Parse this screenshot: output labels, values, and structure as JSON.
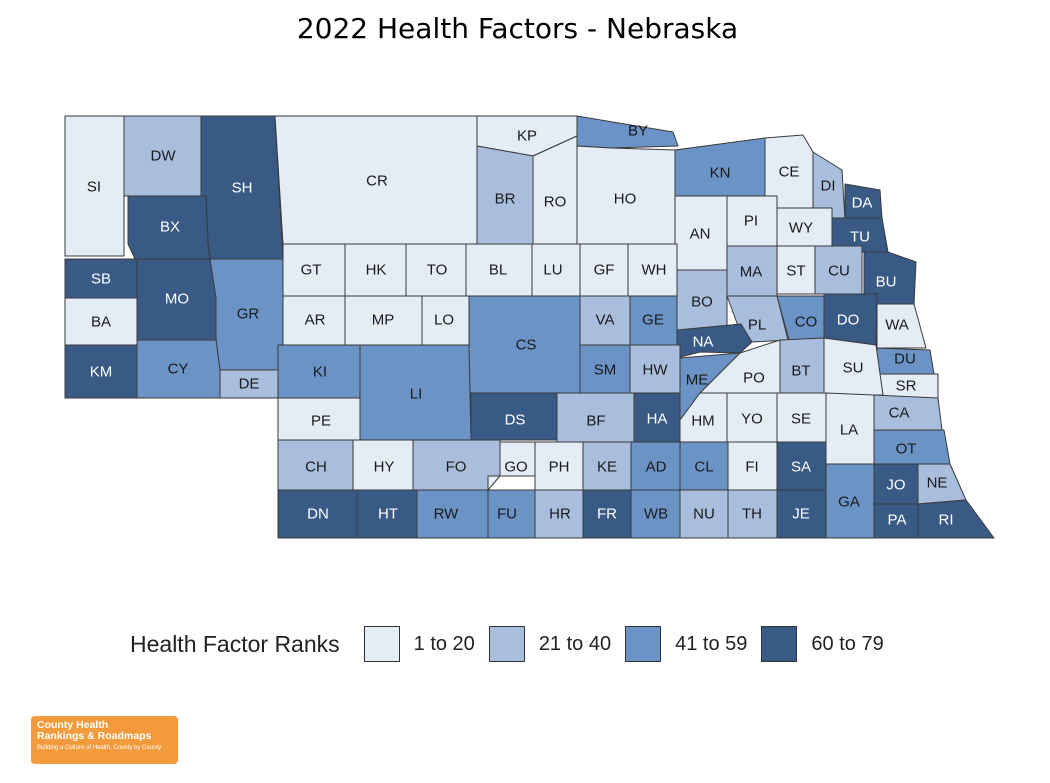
{
  "title": "2022 Health Factors - Nebraska",
  "legend": {
    "title": "Health Factor Ranks",
    "items": [
      {
        "label": "1 to 20",
        "color": "#e4ecf5"
      },
      {
        "label": "21 to 40",
        "color": "#a8bedc"
      },
      {
        "label": "41 to 59",
        "color": "#6c93c6"
      },
      {
        "label": "60 to 79",
        "color": "#3a5a86"
      }
    ]
  },
  "logo": {
    "line1": "County Health",
    "line2": "Rankings & Roadmaps",
    "line3": "Building a Culture of Health, County by County"
  },
  "counties": [
    {
      "abbr": "SI",
      "tier": 0
    },
    {
      "abbr": "DW",
      "tier": 1
    },
    {
      "abbr": "SH",
      "tier": 3
    },
    {
      "abbr": "BX",
      "tier": 3
    },
    {
      "abbr": "CR",
      "tier": 0
    },
    {
      "abbr": "KP",
      "tier": 0
    },
    {
      "abbr": "BY",
      "tier": 2
    },
    {
      "abbr": "BR",
      "tier": 1
    },
    {
      "abbr": "RO",
      "tier": 0
    },
    {
      "abbr": "HO",
      "tier": 0
    },
    {
      "abbr": "KN",
      "tier": 2
    },
    {
      "abbr": "CE",
      "tier": 0
    },
    {
      "abbr": "DI",
      "tier": 1
    },
    {
      "abbr": "DA",
      "tier": 3
    },
    {
      "abbr": "TU",
      "tier": 3
    },
    {
      "abbr": "BU",
      "tier": 3
    },
    {
      "abbr": "AN",
      "tier": 0
    },
    {
      "abbr": "PI",
      "tier": 0
    },
    {
      "abbr": "WY",
      "tier": 0
    },
    {
      "abbr": "SB",
      "tier": 3
    },
    {
      "abbr": "MO",
      "tier": 3
    },
    {
      "abbr": "BA",
      "tier": 0
    },
    {
      "abbr": "KM",
      "tier": 3
    },
    {
      "abbr": "GR",
      "tier": 2
    },
    {
      "abbr": "CY",
      "tier": 2
    },
    {
      "abbr": "DE",
      "tier": 1
    },
    {
      "abbr": "GT",
      "tier": 0
    },
    {
      "abbr": "HK",
      "tier": 0
    },
    {
      "abbr": "TO",
      "tier": 0
    },
    {
      "abbr": "BL",
      "tier": 0
    },
    {
      "abbr": "LU",
      "tier": 0
    },
    {
      "abbr": "GF",
      "tier": 0
    },
    {
      "abbr": "WH",
      "tier": 0
    },
    {
      "abbr": "MA",
      "tier": 1
    },
    {
      "abbr": "ST",
      "tier": 0
    },
    {
      "abbr": "CU",
      "tier": 1
    },
    {
      "abbr": "AR",
      "tier": 0
    },
    {
      "abbr": "MP",
      "tier": 0
    },
    {
      "abbr": "LO",
      "tier": 0
    },
    {
      "abbr": "CS",
      "tier": 2
    },
    {
      "abbr": "VA",
      "tier": 1
    },
    {
      "abbr": "GE",
      "tier": 2
    },
    {
      "abbr": "BO",
      "tier": 1
    },
    {
      "abbr": "PL",
      "tier": 1
    },
    {
      "abbr": "CO",
      "tier": 2
    },
    {
      "abbr": "DO",
      "tier": 3
    },
    {
      "abbr": "WA",
      "tier": 0
    },
    {
      "abbr": "NA",
      "tier": 3
    },
    {
      "abbr": "DU",
      "tier": 2
    },
    {
      "abbr": "SR",
      "tier": 0
    },
    {
      "abbr": "KI",
      "tier": 2
    },
    {
      "abbr": "LI",
      "tier": 2
    },
    {
      "abbr": "SM",
      "tier": 2
    },
    {
      "abbr": "HW",
      "tier": 1
    },
    {
      "abbr": "ME",
      "tier": 2
    },
    {
      "abbr": "PO",
      "tier": 0
    },
    {
      "abbr": "BT",
      "tier": 1
    },
    {
      "abbr": "SU",
      "tier": 0
    },
    {
      "abbr": "PE",
      "tier": 0
    },
    {
      "abbr": "DS",
      "tier": 3
    },
    {
      "abbr": "BF",
      "tier": 1
    },
    {
      "abbr": "HA",
      "tier": 3
    },
    {
      "abbr": "HM",
      "tier": 0
    },
    {
      "abbr": "YO",
      "tier": 0
    },
    {
      "abbr": "SE",
      "tier": 0
    },
    {
      "abbr": "LA",
      "tier": 0
    },
    {
      "abbr": "CA",
      "tier": 1
    },
    {
      "abbr": "OT",
      "tier": 2
    },
    {
      "abbr": "CH",
      "tier": 1
    },
    {
      "abbr": "HY",
      "tier": 0
    },
    {
      "abbr": "FO",
      "tier": 1
    },
    {
      "abbr": "GO",
      "tier": 0
    },
    {
      "abbr": "PH",
      "tier": 0
    },
    {
      "abbr": "KE",
      "tier": 1
    },
    {
      "abbr": "AD",
      "tier": 2
    },
    {
      "abbr": "CL",
      "tier": 2
    },
    {
      "abbr": "FI",
      "tier": 0
    },
    {
      "abbr": "SA",
      "tier": 3
    },
    {
      "abbr": "GA",
      "tier": 2
    },
    {
      "abbr": "JO",
      "tier": 3
    },
    {
      "abbr": "NE",
      "tier": 1
    },
    {
      "abbr": "DN",
      "tier": 3
    },
    {
      "abbr": "HT",
      "tier": 3
    },
    {
      "abbr": "RW",
      "tier": 2
    },
    {
      "abbr": "FU",
      "tier": 2
    },
    {
      "abbr": "HR",
      "tier": 1
    },
    {
      "abbr": "FR",
      "tier": 3
    },
    {
      "abbr": "WB",
      "tier": 2
    },
    {
      "abbr": "NU",
      "tier": 1
    },
    {
      "abbr": "TH",
      "tier": 1
    },
    {
      "abbr": "JE",
      "tier": 3
    },
    {
      "abbr": "PA",
      "tier": 3
    },
    {
      "abbr": "RI",
      "tier": 3
    }
  ]
}
